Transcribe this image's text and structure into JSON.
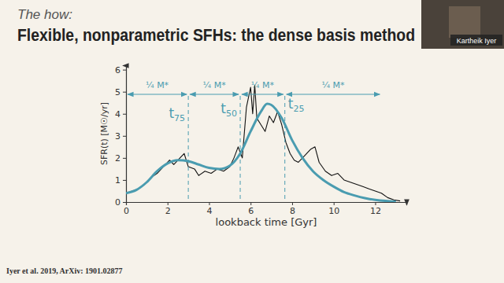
{
  "slide": {
    "kicker": "The how:",
    "title": "Flexible, nonparametric SFHs: the dense basis method",
    "citation": "Iyer et al. 2019, ArXiv: 1901.02877",
    "speaker": "Kartheik Iyer"
  },
  "chart_data": {
    "type": "line",
    "x_label": "lookback time [Gyr]",
    "y_label": "SFR(t) [M☉/yr]",
    "xlim": [
      0,
      13.5
    ],
    "ylim": [
      0,
      6.2
    ],
    "xticks": [
      0,
      2,
      4,
      6,
      8,
      10,
      12
    ],
    "yticks": [
      0,
      1,
      2,
      3,
      4,
      5,
      6
    ],
    "series": [
      {
        "color": "#111111",
        "x": [
          0,
          0.3,
          0.6,
          0.9,
          1.2,
          1.5,
          1.8,
          2.1,
          2.3,
          2.6,
          2.8,
          3.0,
          3.3,
          3.5,
          3.8,
          4.1,
          4.4,
          4.7,
          5.0,
          5.2,
          5.4,
          5.6,
          5.8,
          6.0,
          6.1,
          6.2,
          6.3,
          6.5,
          6.7,
          6.9,
          7.1,
          7.3,
          7.5,
          7.7,
          7.9,
          8.1,
          8.3,
          8.6,
          8.9,
          9.1,
          9.3,
          9.6,
          9.9,
          10.2,
          10.5,
          10.8,
          11.1,
          11.4,
          11.7,
          12.0,
          12.3,
          12.6,
          12.9,
          13.2
        ],
        "values": [
          0.4,
          0.5,
          0.6,
          0.8,
          1.1,
          1.3,
          1.6,
          1.9,
          1.7,
          2.0,
          2.2,
          1.6,
          1.5,
          1.2,
          1.4,
          1.3,
          1.5,
          1.4,
          1.6,
          2.0,
          2.5,
          2.0,
          4.3,
          5.2,
          4.0,
          5.3,
          3.8,
          3.5,
          3.2,
          3.9,
          3.6,
          4.1,
          3.5,
          2.7,
          2.2,
          1.9,
          1.8,
          2.1,
          2.4,
          2.5,
          1.8,
          1.4,
          1.2,
          1.3,
          1.0,
          0.9,
          0.8,
          0.7,
          0.6,
          0.5,
          0.4,
          0.2,
          0.1,
          0.05
        ]
      },
      {
        "color": "#4a9cb0",
        "x": [
          0,
          0.5,
          1,
          1.5,
          2,
          2.5,
          3,
          3.5,
          4,
          4.5,
          5,
          5.5,
          6,
          6.5,
          6.8,
          7,
          7.5,
          8,
          8.5,
          9,
          9.5,
          10,
          10.5,
          11,
          11.5,
          12,
          12.5,
          13
        ],
        "values": [
          0.4,
          0.55,
          0.9,
          1.4,
          1.75,
          1.9,
          1.85,
          1.7,
          1.55,
          1.5,
          1.65,
          2.2,
          3.2,
          4.1,
          4.45,
          4.4,
          3.8,
          2.8,
          2.0,
          1.4,
          1.0,
          0.7,
          0.45,
          0.3,
          0.18,
          0.1,
          0.05,
          0.02
        ]
      }
    ],
    "markers": [
      {
        "label": "t75",
        "x": 3.0
      },
      {
        "label": "t50",
        "x": 5.5
      },
      {
        "label": "t25",
        "x": 7.65
      }
    ],
    "arrows": [
      {
        "from": 0,
        "to": 3.0,
        "label": "¼ M*"
      },
      {
        "from": 3.0,
        "to": 5.5,
        "label": "¼ M*"
      },
      {
        "from": 5.5,
        "to": 7.65,
        "label": "¼ M*"
      },
      {
        "from": 7.65,
        "to": 12.3,
        "label": "¼ M*"
      }
    ]
  }
}
